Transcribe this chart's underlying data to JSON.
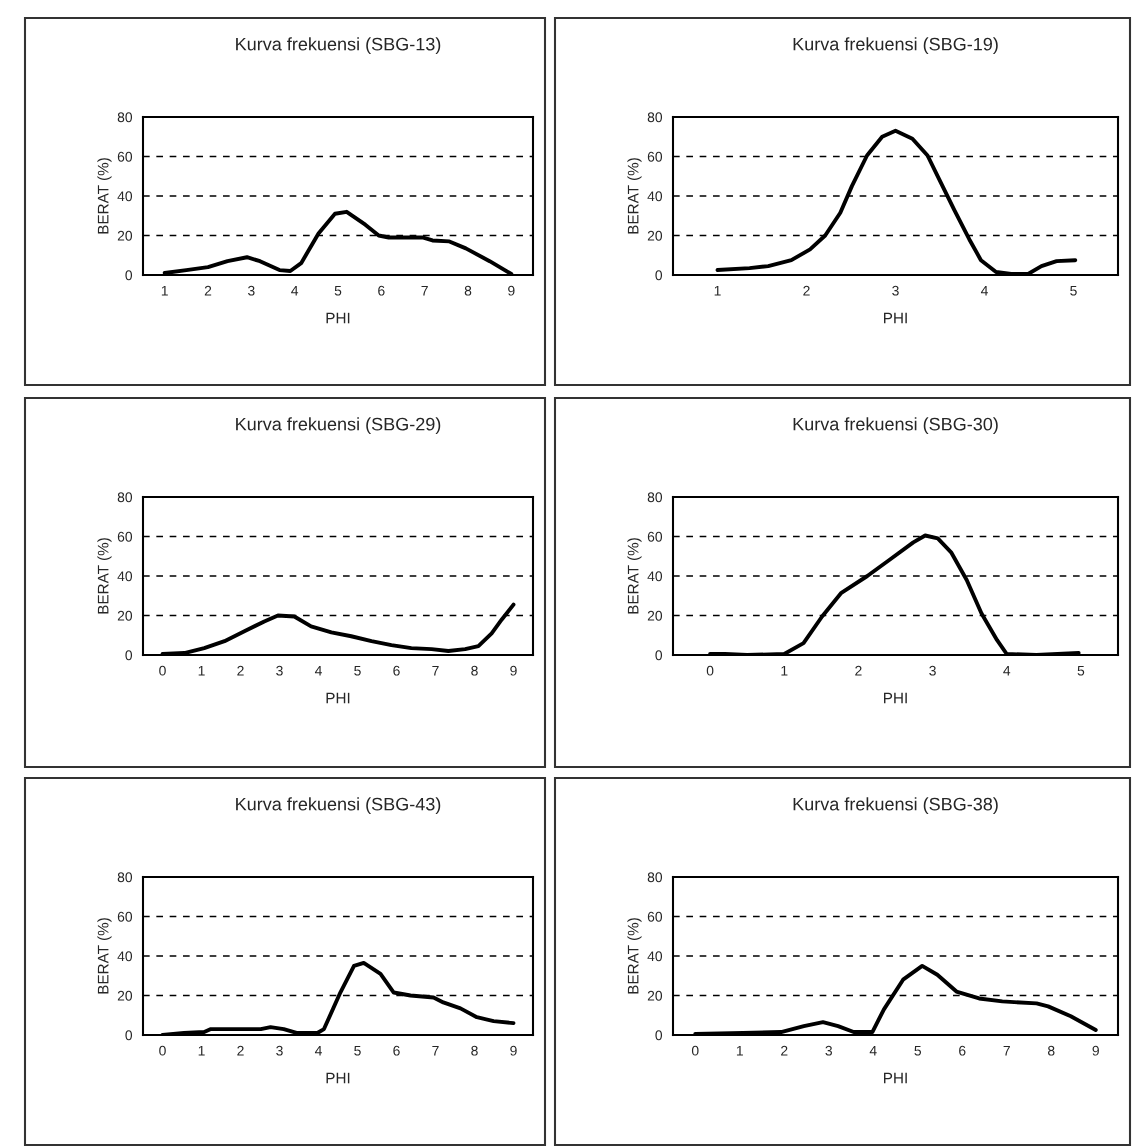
{
  "chart_data": [
    {
      "type": "line",
      "title": "Kurva frekuensi (SBG-13)",
      "xlabel": "PHI",
      "ylabel": "BERAT (%)",
      "xlim": [
        0.5,
        9.5
      ],
      "xticks": [
        1,
        2,
        3,
        4,
        5,
        6,
        7,
        8,
        9
      ],
      "ylim": [
        0,
        80
      ],
      "yticks": [
        0,
        20,
        40,
        60,
        80
      ],
      "grid": "y",
      "line_style": "solid",
      "marker": "none",
      "series": [
        {
          "color": "#000000",
          "x": [
            1,
            1.5,
            2,
            2.45,
            2.9,
            3.2,
            3.65,
            3.9,
            4.15,
            4.55,
            4.93,
            5.2,
            5.63,
            5.94,
            6.17,
            6.64,
            6.95,
            7.18,
            7.57,
            7.95,
            8.5,
            9
          ],
          "values": [
            1,
            2.5,
            4,
            7,
            9,
            7,
            2.5,
            2,
            6,
            21,
            31,
            32,
            25.5,
            20,
            19,
            19,
            19,
            17.5,
            17,
            13.5,
            7,
            0.5
          ]
        }
      ]
    },
    {
      "type": "line",
      "title": "Kurva frekuensi (SBG-19)",
      "xlabel": "PHI",
      "ylabel": "BERAT (%)",
      "xlim": [
        0.5,
        5.5
      ],
      "xticks": [
        1,
        2,
        3,
        4,
        5
      ],
      "ylim": [
        0,
        80
      ],
      "yticks": [
        0,
        20,
        40,
        60,
        80
      ],
      "grid": "y",
      "line_style": "solid",
      "marker": "none",
      "series": [
        {
          "color": "#000000",
          "x": [
            1,
            1.36,
            1.57,
            1.83,
            2.04,
            2.21,
            2.38,
            2.51,
            2.68,
            2.85,
            3.0,
            3.19,
            3.36,
            3.49,
            3.66,
            3.83,
            3.96,
            4.13,
            4.3,
            4.49,
            4.64,
            4.81,
            5.02
          ],
          "values": [
            2.5,
            3.5,
            4.5,
            7.5,
            13,
            20,
            31.5,
            45,
            60.5,
            70,
            73,
            69,
            60.5,
            48.5,
            33,
            18,
            7.5,
            1.5,
            0.5,
            0.5,
            4.5,
            7,
            7.5
          ]
        }
      ]
    },
    {
      "type": "line",
      "title": "Kurva frekuensi (SBG-29)",
      "xlabel": "PHI",
      "ylabel": "BERAT (%)",
      "xlim": [
        -0.5,
        9.5
      ],
      "xticks": [
        0,
        1,
        2,
        3,
        4,
        5,
        6,
        7,
        8,
        9
      ],
      "ylim": [
        0,
        80
      ],
      "yticks": [
        0,
        20,
        40,
        60,
        80
      ],
      "grid": "y",
      "line_style": "solid",
      "marker": "none",
      "series": [
        {
          "color": "#000000",
          "x": [
            0,
            0.56,
            1.07,
            1.59,
            2.1,
            2.61,
            2.96,
            3.38,
            3.81,
            4.33,
            4.84,
            5.36,
            5.87,
            6.38,
            6.9,
            7.33,
            7.76,
            8.1,
            8.44,
            8.7,
            9
          ],
          "values": [
            0.5,
            1,
            3.5,
            7,
            12,
            17,
            20,
            19.5,
            14.5,
            11.5,
            9.5,
            7,
            5,
            3.5,
            3,
            2,
            3,
            4.5,
            11,
            18,
            25.5
          ]
        }
      ]
    },
    {
      "type": "line",
      "title": "Kurva frekuensi (SBG-30)",
      "xlabel": "PHI",
      "ylabel": "BERAT (%)",
      "xlim": [
        -0.5,
        5.5
      ],
      "xticks": [
        0,
        1,
        2,
        3,
        4,
        5
      ],
      "ylim": [
        0,
        80
      ],
      "yticks": [
        0,
        20,
        40,
        60,
        80
      ],
      "grid": "y",
      "line_style": "solid",
      "marker": "none",
      "series": [
        {
          "color": "#000000",
          "x": [
            0,
            0.2,
            0.5,
            1,
            1.26,
            1.51,
            1.77,
            2.12,
            2.43,
            2.74,
            2.9,
            3.07,
            3.25,
            3.46,
            3.66,
            3.87,
            4.0,
            4.4,
            4.97
          ],
          "values": [
            0.5,
            0.5,
            0,
            0.5,
            6,
            19.5,
            31.5,
            40,
            48.5,
            57,
            60.5,
            59,
            52,
            38,
            21,
            7.5,
            0.5,
            0,
            1
          ]
        }
      ]
    },
    {
      "type": "line",
      "title": "Kurva frekuensi (SBG-43)",
      "xlabel": "PHI",
      "ylabel": "BERAT (%)",
      "xlim": [
        -0.5,
        9.5
      ],
      "xticks": [
        0,
        1,
        2,
        3,
        4,
        5,
        6,
        7,
        8,
        9
      ],
      "ylim": [
        0,
        80
      ],
      "yticks": [
        0,
        20,
        40,
        60,
        80
      ],
      "grid": "y",
      "line_style": "solid",
      "marker": "none",
      "series": [
        {
          "color": "#000000",
          "x": [
            0,
            0.55,
            1.07,
            1.24,
            2.52,
            2.77,
            3.11,
            3.46,
            3.97,
            4.14,
            4.56,
            4.91,
            5.16,
            5.59,
            5.93,
            6.36,
            6.95,
            7.2,
            7.64,
            8.06,
            8.49,
            9
          ],
          "values": [
            0,
            1,
            1.5,
            3,
            3,
            4,
            3,
            1,
            1,
            3,
            21.5,
            35,
            36.5,
            31,
            21.5,
            20,
            19,
            16.5,
            13.5,
            9,
            7,
            6
          ]
        }
      ]
    },
    {
      "type": "line",
      "title": "Kurva frekuensi (SBG-38)",
      "xlabel": "PHI",
      "ylabel": "BERAT (%)",
      "xlim": [
        -0.5,
        9.5
      ],
      "xticks": [
        0,
        1,
        2,
        3,
        4,
        5,
        6,
        7,
        8,
        9
      ],
      "ylim": [
        0,
        80
      ],
      "yticks": [
        0,
        20,
        40,
        60,
        80
      ],
      "grid": "y",
      "line_style": "solid",
      "marker": "none",
      "series": [
        {
          "color": "#000000",
          "x": [
            0,
            1.07,
            1.93,
            2.44,
            2.87,
            3.21,
            3.56,
            3.98,
            4.24,
            4.67,
            5.1,
            5.44,
            5.87,
            6.38,
            6.9,
            7.67,
            7.93,
            8.44,
            9
          ],
          "values": [
            0.5,
            1,
            1.5,
            4.5,
            6.5,
            4.5,
            1.5,
            1.5,
            13,
            28,
            35,
            30.5,
            22,
            18.5,
            17,
            16,
            14.5,
            9.5,
            2.5
          ]
        }
      ]
    }
  ]
}
